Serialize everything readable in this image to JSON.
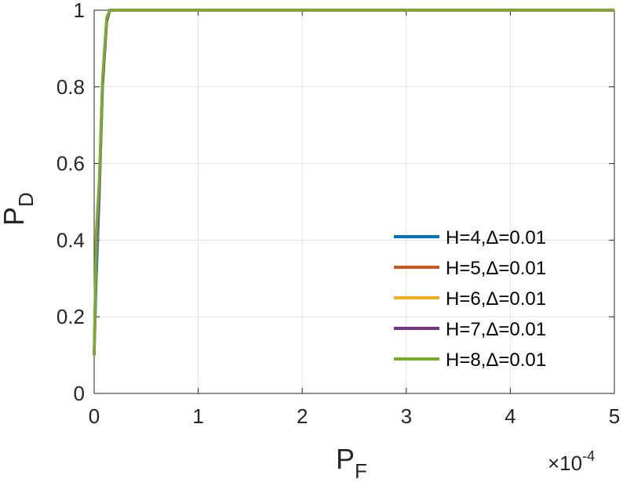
{
  "chart_data": {
    "type": "line",
    "xlabel": "P",
    "xlabel_sub": "F",
    "ylabel": "P",
    "ylabel_sub": "D",
    "xlim": [
      0,
      0.0005
    ],
    "ylim": [
      0,
      1
    ],
    "x_ticks": [
      0,
      0.0001,
      0.0002,
      0.0003,
      0.0004,
      0.0005
    ],
    "x_tick_labels": [
      "0",
      "1",
      "2",
      "3",
      "4",
      "5"
    ],
    "y_ticks": [
      0,
      0.2,
      0.4,
      0.6,
      0.8,
      1
    ],
    "y_tick_labels": [
      "0",
      "0.2",
      "0.4",
      "0.6",
      "0.8",
      "1"
    ],
    "x_multiplier": "×10",
    "x_multiplier_exp": "-4",
    "grid": true,
    "legend_position": "bottom-right",
    "series": [
      {
        "name": "H=4,Δ=0.01",
        "color": "#0072BD",
        "x": [
          0,
          2e-06,
          5e-06,
          8e-06,
          1.2e-05,
          1.5e-05,
          0.0005
        ],
        "y": [
          0.1,
          0.3,
          0.52,
          0.8,
          0.97,
          1,
          1
        ]
      },
      {
        "name": "H=5,Δ=0.01",
        "color": "#D95319",
        "x": [
          0,
          2e-06,
          5e-06,
          8e-06,
          1.2e-05,
          1.5e-05,
          0.0005
        ],
        "y": [
          0.1,
          0.4,
          0.55,
          0.81,
          0.97,
          1,
          1
        ]
      },
      {
        "name": "H=6,Δ=0.01",
        "color": "#EDB120",
        "x": [
          0,
          2e-06,
          5e-06,
          8e-06,
          1.2e-05,
          1.5e-05,
          0.0005
        ],
        "y": [
          0.1,
          0.36,
          0.54,
          0.8,
          0.97,
          1,
          1
        ]
      },
      {
        "name": "H=7,Δ=0.01",
        "color": "#7E2F8E",
        "x": [
          0,
          2e-06,
          5e-06,
          8e-06,
          1.2e-05,
          1.5e-05,
          0.0005
        ],
        "y": [
          0.1,
          0.38,
          0.54,
          0.8,
          0.97,
          1,
          1
        ]
      },
      {
        "name": "H=8,Δ=0.01",
        "color": "#77AC30",
        "x": [
          0,
          2e-06,
          5e-06,
          8e-06,
          1.2e-05,
          1.5e-05,
          0.0005
        ],
        "y": [
          0.1,
          0.42,
          0.56,
          0.82,
          0.98,
          1,
          1
        ]
      }
    ]
  }
}
